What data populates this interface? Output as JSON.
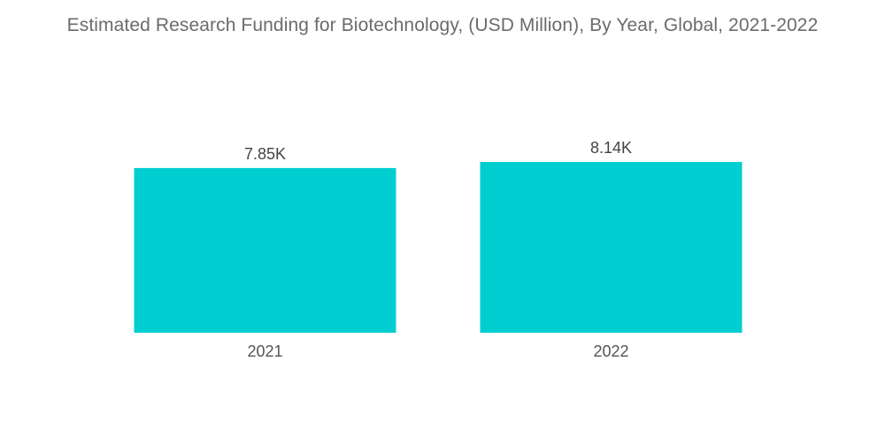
{
  "chart_data": {
    "type": "bar",
    "title": "Estimated Research Funding for Biotechnology, (USD Million), By Year, Global, 2021-2022",
    "categories": [
      "2021",
      "2022"
    ],
    "values": [
      7850,
      8140
    ],
    "data_labels": [
      "7.85K",
      "8.14K"
    ],
    "xlabel": "",
    "ylabel": "",
    "bar_color": "#00ced1",
    "grid": false,
    "legend": "none"
  }
}
